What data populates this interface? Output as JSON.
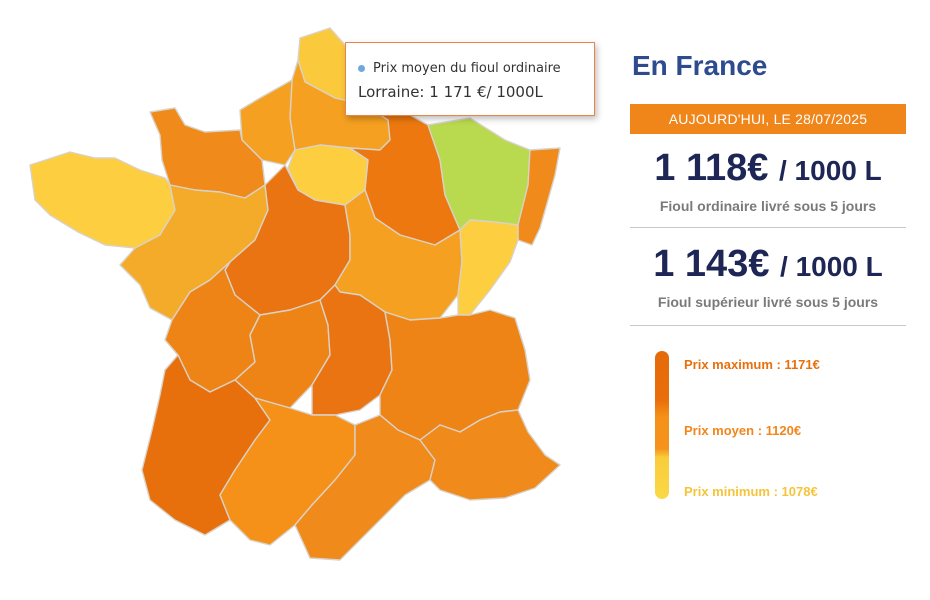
{
  "panel": {
    "title": "En France",
    "date": "AUJOURD'HUI, LE 28/07/2025",
    "ordinary_price": "1 118€",
    "ordinary_unit": "/ 1000 L",
    "ordinary_label": "Fioul ordinaire livré sous 5 jours",
    "superior_price": "1 143€",
    "superior_unit": "/ 1000 L",
    "superior_label": "Fioul supérieur livré sous 5 jours"
  },
  "legend": {
    "max_label": "Prix maximum : 1171€",
    "avg_label": "Prix moyen : 1120€",
    "min_label": "Prix minimum : 1078€",
    "max_value": 1171,
    "avg_value": 1120,
    "min_value": 1078,
    "max_color": "#e8700c",
    "avg_color": "#f2861a",
    "min_color": "#f5c43a"
  },
  "tooltip": {
    "series": "Prix moyen du fioul ordinaire",
    "value": "Lorraine: 1 171 €/ 1000L",
    "dot_color": "#6fa8dc"
  },
  "map": {
    "regions": [
      {
        "name": "nord",
        "color": "#fbc93c"
      },
      {
        "name": "picardie",
        "color": "#f5a020"
      },
      {
        "name": "haute-normandie",
        "color": "#f5a020"
      },
      {
        "name": "basse-normandie",
        "color": "#f08a1a"
      },
      {
        "name": "bretagne",
        "color": "#fcce40"
      },
      {
        "name": "pays-de-la-loire",
        "color": "#f5ab2a"
      },
      {
        "name": "ile-de-france",
        "color": "#fcce40"
      },
      {
        "name": "centre",
        "color": "#ea7411"
      },
      {
        "name": "champagne-ardenne",
        "color": "#ec780f"
      },
      {
        "name": "lorraine",
        "color": "#b9d94f"
      },
      {
        "name": "alsace",
        "color": "#f08a1a"
      },
      {
        "name": "bourgogne",
        "color": "#f5a020"
      },
      {
        "name": "franche-comte",
        "color": "#fcce40"
      },
      {
        "name": "poitou-charentes",
        "color": "#ef8416"
      },
      {
        "name": "limousin",
        "color": "#ef8416"
      },
      {
        "name": "auvergne",
        "color": "#ea7411"
      },
      {
        "name": "rhone-alpes",
        "color": "#ef8416"
      },
      {
        "name": "aquitaine",
        "color": "#e8700c"
      },
      {
        "name": "midi-pyrenees",
        "color": "#f59118"
      },
      {
        "name": "languedoc-roussillon",
        "color": "#f08a1a"
      },
      {
        "name": "paca",
        "color": "#f08a1a"
      }
    ]
  }
}
